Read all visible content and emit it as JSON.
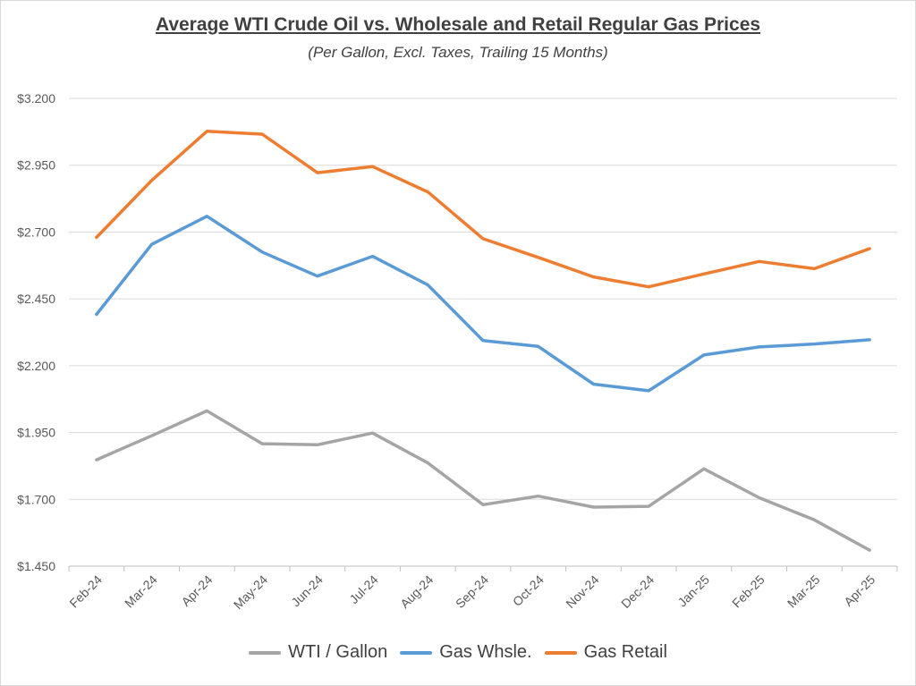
{
  "chart_data": {
    "type": "line",
    "title": "Average WTI Crude Oil vs. Wholesale and Retail Regular Gas Prices",
    "subtitle": "(Per Gallon, Excl. Taxes, Trailing 15 Months)",
    "categories": [
      "Feb-24",
      "Mar-24",
      "Apr-24",
      "May-24",
      "Jun-24",
      "Jul-24",
      "Aug-24",
      "Sep-24",
      "Oct-24",
      "Nov-24",
      "Dec-24",
      "Jan-25",
      "Feb-25",
      "Mar-25",
      "Apr-25"
    ],
    "ylim": [
      1.45,
      3.2
    ],
    "yticks": [
      1.45,
      1.7,
      1.95,
      2.2,
      2.45,
      2.7,
      2.95,
      3.2
    ],
    "ytick_labels": [
      "$1.450",
      "$1.700",
      "$1.950",
      "$2.200",
      "$2.450",
      "$2.700",
      "$2.950",
      "$3.200"
    ],
    "grid": true,
    "legend_position": "bottom",
    "series": [
      {
        "name": "WTI / Gallon",
        "color": "#a5a5a5",
        "values": [
          1.848,
          1.938,
          2.031,
          1.908,
          1.904,
          1.948,
          1.836,
          1.68,
          1.712,
          1.671,
          1.674,
          1.814,
          1.706,
          1.623,
          1.51
        ]
      },
      {
        "name": "Gas Whsle.",
        "color": "#5b9bd5",
        "values": [
          2.392,
          2.654,
          2.759,
          2.625,
          2.535,
          2.609,
          2.502,
          2.294,
          2.272,
          2.131,
          2.106,
          2.24,
          2.27,
          2.281,
          2.297
        ]
      },
      {
        "name": "Gas Retail",
        "color": "#ed7d31",
        "values": [
          2.68,
          2.893,
          3.077,
          3.066,
          2.922,
          2.945,
          2.85,
          2.675,
          2.605,
          2.532,
          2.495,
          2.543,
          2.59,
          2.563,
          2.638
        ]
      }
    ]
  }
}
